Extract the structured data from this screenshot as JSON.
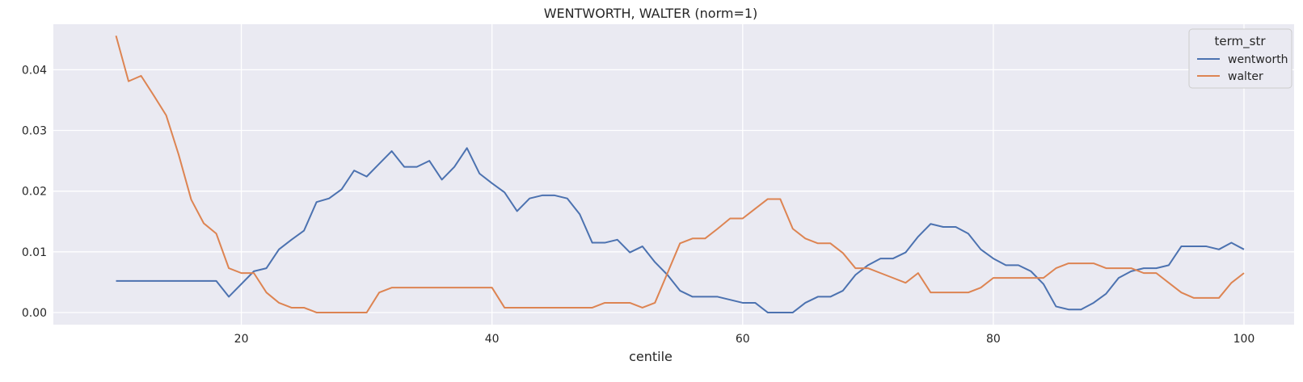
{
  "chart_data": {
    "type": "line",
    "title": "WENTWORTH, WALTER (norm=1)",
    "xlabel": "centile",
    "ylabel": "",
    "xlim": [
      5,
      104
    ],
    "ylim": [
      -0.002,
      0.0475
    ],
    "xticks": [
      20,
      40,
      60,
      80,
      100
    ],
    "yticks": [
      0.0,
      0.01,
      0.02,
      0.03,
      0.04
    ],
    "ytick_labels": [
      "0.00",
      "0.01",
      "0.02",
      "0.03",
      "0.04"
    ],
    "grid": true,
    "legend": {
      "title": "term_str",
      "placement": "top-right"
    },
    "x": [
      10,
      11,
      12,
      13,
      14,
      15,
      16,
      17,
      18,
      19,
      20,
      21,
      22,
      23,
      24,
      25,
      26,
      27,
      28,
      29,
      30,
      31,
      32,
      33,
      34,
      35,
      36,
      37,
      38,
      39,
      40,
      41,
      42,
      43,
      44,
      45,
      46,
      47,
      48,
      49,
      50,
      51,
      52,
      53,
      54,
      55,
      56,
      57,
      58,
      59,
      60,
      61,
      62,
      63,
      64,
      65,
      66,
      67,
      68,
      69,
      70,
      71,
      72,
      73,
      74,
      75,
      76,
      77,
      78,
      79,
      80,
      81,
      82,
      83,
      84,
      85,
      86,
      87,
      88,
      89,
      90,
      91,
      92,
      93,
      94,
      95,
      96,
      97,
      98,
      99,
      100
    ],
    "series": [
      {
        "name": "wentworth",
        "color": "#4c72b0",
        "values": [
          0.0052,
          0.0052,
          0.0052,
          0.0052,
          0.0052,
          0.0052,
          0.0052,
          0.0052,
          0.0052,
          0.0026,
          0.0047,
          0.0068,
          0.0073,
          0.0104,
          0.012,
          0.0135,
          0.0182,
          0.0188,
          0.0203,
          0.0234,
          0.0224,
          0.0245,
          0.0266,
          0.024,
          0.024,
          0.025,
          0.0219,
          0.024,
          0.0271,
          0.0229,
          0.0213,
          0.0198,
          0.0167,
          0.0188,
          0.0193,
          0.0193,
          0.0188,
          0.0162,
          0.0115,
          0.0115,
          0.012,
          0.0099,
          0.0109,
          0.0083,
          0.0062,
          0.0036,
          0.0026,
          0.0026,
          0.0026,
          0.0021,
          0.0016,
          0.0016,
          0.0,
          0.0,
          0.0,
          0.0016,
          0.0026,
          0.0026,
          0.0036,
          0.0062,
          0.0078,
          0.0089,
          0.0089,
          0.0099,
          0.0125,
          0.0146,
          0.0141,
          0.0141,
          0.013,
          0.0104,
          0.0089,
          0.0078,
          0.0078,
          0.0068,
          0.0047,
          0.001,
          0.0005,
          0.0005,
          0.0016,
          0.0031,
          0.0057,
          0.0068,
          0.0073,
          0.0073,
          0.0078,
          0.0109,
          0.0109,
          0.0109,
          0.0104,
          0.0115,
          0.0104
        ]
      },
      {
        "name": "walter",
        "color": "#dd8452",
        "values": [
          0.0456,
          0.0381,
          0.039,
          0.0358,
          0.0325,
          0.026,
          0.0186,
          0.0147,
          0.013,
          0.0073,
          0.0065,
          0.0065,
          0.0033,
          0.0016,
          0.0008,
          0.0008,
          0.0,
          0.0,
          0.0,
          0.0,
          0.0,
          0.0033,
          0.0041,
          0.0041,
          0.0041,
          0.0041,
          0.0041,
          0.0041,
          0.0041,
          0.0041,
          0.0041,
          0.0008,
          0.0008,
          0.0008,
          0.0008,
          0.0008,
          0.0008,
          0.0008,
          0.0008,
          0.0016,
          0.0016,
          0.0016,
          0.0008,
          0.0016,
          0.0065,
          0.0114,
          0.0122,
          0.0122,
          0.0138,
          0.0155,
          0.0155,
          0.0171,
          0.0187,
          0.0187,
          0.0138,
          0.0122,
          0.0114,
          0.0114,
          0.0098,
          0.0073,
          0.0073,
          0.0065,
          0.0057,
          0.0049,
          0.0065,
          0.0033,
          0.0033,
          0.0033,
          0.0033,
          0.0041,
          0.0057,
          0.0057,
          0.0057,
          0.0057,
          0.0057,
          0.0073,
          0.0081,
          0.0081,
          0.0081,
          0.0073,
          0.0073,
          0.0073,
          0.0065,
          0.0065,
          0.0049,
          0.0033,
          0.0024,
          0.0024,
          0.0024,
          0.0049,
          0.0065
        ]
      }
    ]
  }
}
